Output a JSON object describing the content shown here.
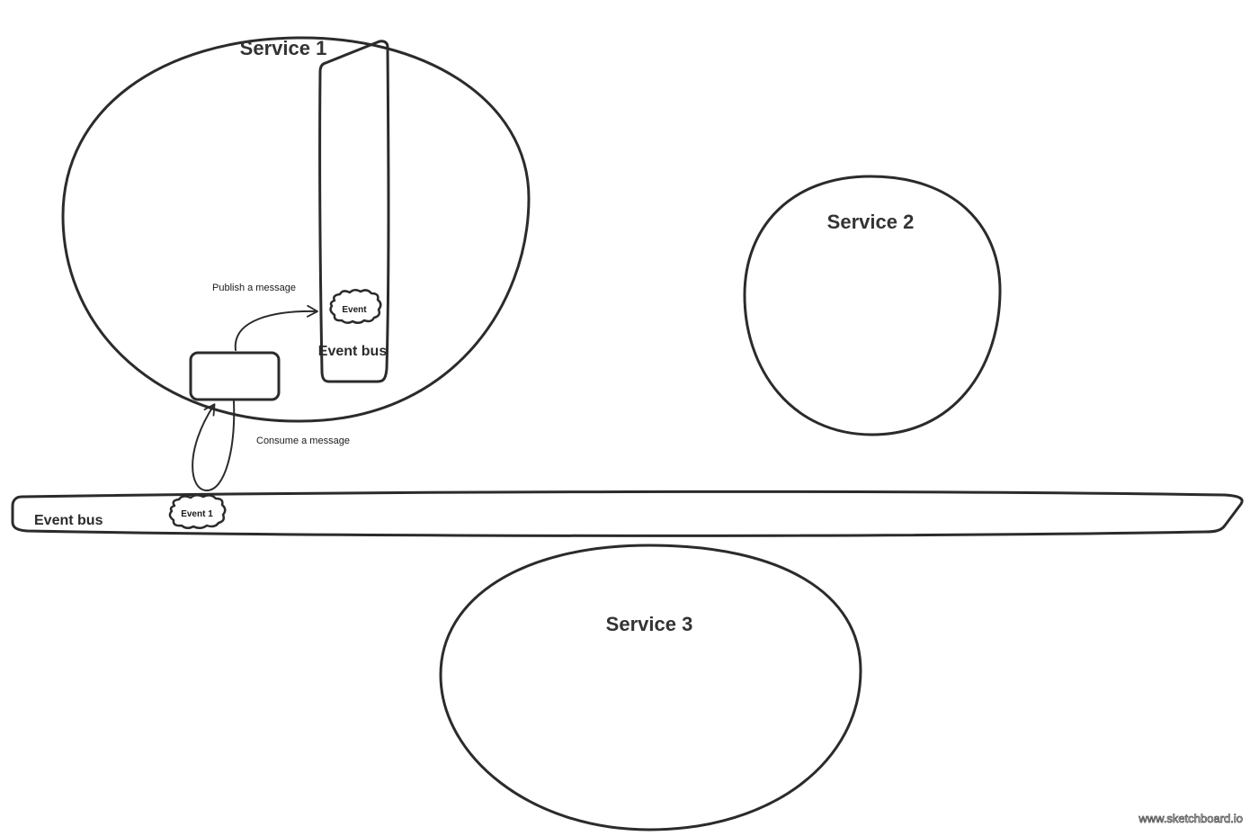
{
  "services": {
    "service1": {
      "title": "Service 1"
    },
    "service2": {
      "title": "Service 2"
    },
    "service3": {
      "title": "Service 3"
    }
  },
  "internal_bus": {
    "label": "Event bus",
    "event_label": "Event"
  },
  "main_bus": {
    "label": "Event bus",
    "event_label": "Event 1"
  },
  "arrows": {
    "publish_label": "Publish a message",
    "consume_label": "Consume a message"
  },
  "watermark": "www.sketchboard.io",
  "colors": {
    "stroke": "#2b2b2b",
    "background": "#ffffff"
  }
}
